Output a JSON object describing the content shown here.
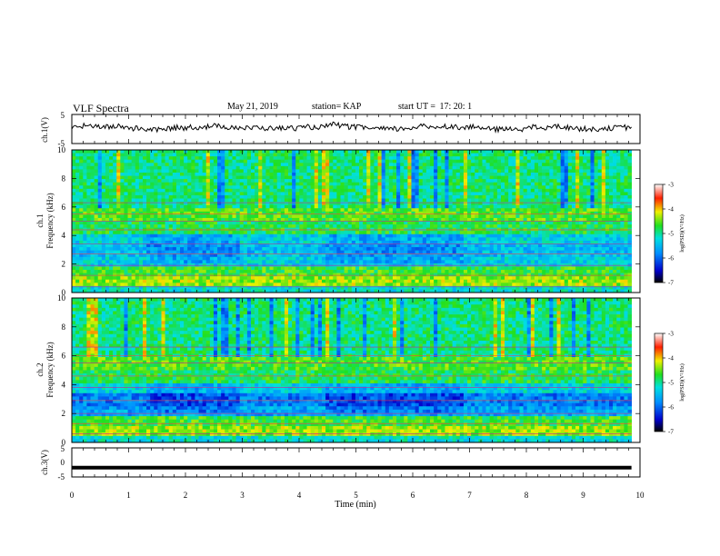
{
  "header": {
    "title": "VLF Spectra",
    "date": "May 21, 2019",
    "station_label": "station=",
    "station": "KAP",
    "start_label": "start  UT  =",
    "start_time": "17: 20: 1"
  },
  "chart_data": [
    {
      "type": "line",
      "panel": "ch1-waveform",
      "ylabel": "ch.1(V)",
      "ylim": [
        -5,
        5
      ],
      "yticks": [
        "5",
        "-5"
      ],
      "xlim": [
        0,
        10
      ],
      "waveform_level": 0.6,
      "waveform_amplitude": 1.8,
      "waveform_end_min": 9.85
    },
    {
      "type": "heatmap",
      "panel": "ch1-spectrogram",
      "ylabel": "Frequency (kHz)",
      "channel": "ch.1",
      "ylim": [
        0,
        10
      ],
      "yticks": [
        "0",
        "2",
        "4",
        "6",
        "8",
        "10"
      ],
      "xlim": [
        0,
        10
      ],
      "data_end_min": 9.85,
      "colorbar": {
        "label": "log(PSD)(V²/Hz)",
        "range": [
          -7,
          -3
        ],
        "ticks": [
          "-3",
          "-4",
          "-5",
          "-6",
          "-7"
        ]
      }
    },
    {
      "type": "heatmap",
      "panel": "ch2-spectrogram",
      "ylabel": "Frequency (kHz)",
      "channel": "ch.2",
      "ylim": [
        0,
        10
      ],
      "yticks": [
        "0",
        "2",
        "4",
        "6",
        "8",
        "10"
      ],
      "xlim": [
        0,
        10
      ],
      "data_end_min": 9.85,
      "colorbar": {
        "label": "log(PSD)(V²/Hz)",
        "range": [
          -7,
          -3
        ],
        "ticks": [
          "-3",
          "-4",
          "-5",
          "-6",
          "-7"
        ]
      }
    },
    {
      "type": "line",
      "panel": "ch3-waveform",
      "ylabel": "ch.3(V)",
      "ylim": [
        -5,
        5
      ],
      "yticks": [
        "5",
        "0",
        "-5"
      ],
      "xlim": [
        0,
        10
      ],
      "constant_value": -1.8,
      "waveform_end_min": 9.85
    }
  ],
  "xaxis": {
    "label": "Time  (min)",
    "ticks": [
      "0",
      "1",
      "2",
      "3",
      "4",
      "5",
      "6",
      "7",
      "8",
      "9",
      "10"
    ]
  }
}
